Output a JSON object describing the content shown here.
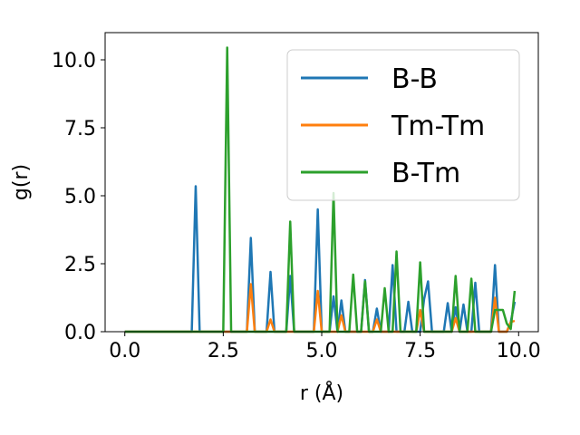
{
  "chart_data": {
    "type": "line",
    "title": "",
    "xlabel": "r (Å)",
    "ylabel": "g(r)",
    "xlim": [
      -0.5,
      10.5
    ],
    "ylim": [
      0,
      11.0
    ],
    "xticks": [
      "0.0",
      "2.5",
      "5.0",
      "7.5",
      "10.0"
    ],
    "yticks": [
      "0.0",
      "2.5",
      "5.0",
      "7.5",
      "10.0"
    ],
    "grid": false,
    "legend_position": "top-right",
    "x": [
      0.0,
      0.1,
      0.2,
      0.3,
      0.4,
      0.5,
      0.6,
      0.7,
      0.8,
      0.9,
      1.0,
      1.1,
      1.2,
      1.3,
      1.4,
      1.5,
      1.6,
      1.7,
      1.8,
      1.9,
      2.0,
      2.1,
      2.2,
      2.3,
      2.4,
      2.5,
      2.6,
      2.7,
      2.8,
      2.9,
      3.0,
      3.1,
      3.2,
      3.3,
      3.4,
      3.5,
      3.6,
      3.7,
      3.8,
      3.9,
      4.0,
      4.1,
      4.2,
      4.3,
      4.4,
      4.5,
      4.6,
      4.7,
      4.8,
      4.9,
      5.0,
      5.1,
      5.2,
      5.3,
      5.4,
      5.5,
      5.6,
      5.7,
      5.8,
      5.9,
      6.0,
      6.1,
      6.2,
      6.3,
      6.4,
      6.5,
      6.6,
      6.7,
      6.8,
      6.9,
      7.0,
      7.1,
      7.2,
      7.3,
      7.4,
      7.5,
      7.6,
      7.7,
      7.8,
      7.9,
      8.0,
      8.1,
      8.2,
      8.3,
      8.4,
      8.5,
      8.6,
      8.7,
      8.8,
      8.9,
      9.0,
      9.1,
      9.2,
      9.3,
      9.4,
      9.5,
      9.6,
      9.7,
      9.8,
      9.9
    ],
    "series": [
      {
        "name": "B-B",
        "color": "#1f77b4",
        "values": [
          0,
          0,
          0,
          0,
          0,
          0,
          0,
          0,
          0,
          0,
          0,
          0,
          0,
          0,
          0,
          0,
          0,
          0,
          5.35,
          0,
          0,
          0,
          0,
          0,
          0,
          0,
          0,
          0,
          0,
          0,
          0,
          0,
          3.45,
          0,
          0,
          0,
          0,
          2.2,
          0,
          0,
          0,
          0,
          2.05,
          0,
          0,
          0,
          0,
          0,
          0,
          4.5,
          0,
          0,
          0,
          1.3,
          0,
          1.15,
          0,
          0,
          0,
          0,
          0,
          1.9,
          0,
          0,
          0.85,
          0,
          0,
          0,
          2.45,
          0,
          0,
          0,
          1.1,
          0,
          0,
          0,
          1.2,
          1.85,
          0,
          0,
          0,
          0,
          1.05,
          0,
          0.9,
          0,
          1.0,
          0,
          0,
          1.8,
          0,
          0,
          0,
          0,
          2.45,
          0,
          0,
          0,
          0.35,
          1.1
        ]
      },
      {
        "name": "Tm-Tm",
        "color": "#ff7f0e",
        "values": [
          0,
          0,
          0,
          0,
          0,
          0,
          0,
          0,
          0,
          0,
          0,
          0,
          0,
          0,
          0,
          0,
          0,
          0,
          0,
          0,
          0,
          0,
          0,
          0,
          0,
          0,
          0,
          0,
          0,
          0,
          0,
          0,
          1.75,
          0,
          0,
          0,
          0,
          0.45,
          0,
          0,
          0,
          0,
          0,
          0,
          0,
          0,
          0,
          0,
          0,
          1.5,
          0,
          0,
          0,
          0,
          0,
          0.6,
          0,
          0,
          0,
          0,
          0,
          0,
          0,
          0,
          0.45,
          0,
          0,
          0,
          0,
          0,
          0,
          0,
          0,
          0,
          0,
          0.8,
          0,
          0,
          0,
          0,
          0,
          0,
          0,
          0,
          0.5,
          0,
          0,
          0,
          0,
          0,
          0,
          0,
          0,
          0,
          1.25,
          0,
          0,
          0,
          0.35,
          0.4
        ]
      },
      {
        "name": "B-Tm",
        "color": "#2ca02c",
        "values": [
          0,
          0,
          0,
          0,
          0,
          0,
          0,
          0,
          0,
          0,
          0,
          0,
          0,
          0,
          0,
          0,
          0,
          0,
          0,
          0,
          0,
          0,
          0,
          0,
          0,
          0,
          10.45,
          0,
          0,
          0,
          0,
          0,
          0,
          0,
          0,
          0,
          0,
          0,
          0,
          0,
          0,
          0,
          4.05,
          0,
          0,
          0,
          0,
          0,
          0,
          0,
          0,
          0,
          0,
          5.1,
          0,
          0,
          0,
          0,
          2.1,
          0,
          0,
          1.85,
          0,
          0,
          0,
          0,
          1.6,
          0,
          0,
          2.95,
          0,
          0,
          0,
          0,
          0,
          2.55,
          0,
          0,
          0,
          0,
          0,
          0,
          0,
          0,
          2.05,
          0,
          0,
          0,
          1.95,
          0,
          0,
          0,
          0,
          0,
          0.8,
          0.8,
          0.8,
          0.3,
          0.1,
          1.5
        ]
      }
    ]
  }
}
